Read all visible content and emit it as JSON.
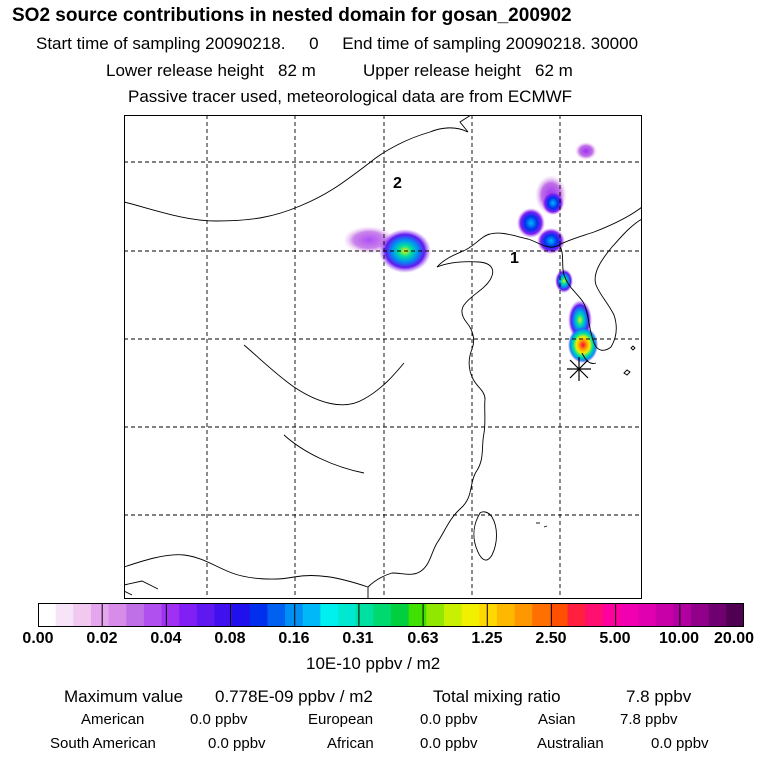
{
  "header": {
    "title": "SO2 source contributions in nested domain for gosan_200902",
    "start_label": "Start time of sampling 20090218.",
    "start_value": "0",
    "end_label": "End time of sampling 20090218. 30000",
    "lower_label": "Lower release height",
    "lower_value": "82 m",
    "upper_label": "Upper release height",
    "upper_value": "62 m",
    "tracer_note": "Passive tracer used, meteorological data are from ECMWF"
  },
  "map": {
    "labels": [
      "2",
      "1"
    ]
  },
  "colorbar": {
    "colors": [
      "#ffffff",
      "#f8e4f8",
      "#f0c8f0",
      "#e6a6ee",
      "#d68ce8",
      "#c070e6",
      "#b050ee",
      "#a030f4",
      "#8020f4",
      "#6018f0",
      "#4010ee",
      "#2010ee",
      "#0030ee",
      "#0060f0",
      "#0090f4",
      "#00b8f8",
      "#00f0f0",
      "#00e8d0",
      "#00e0a0",
      "#00d870",
      "#00d040",
      "#40e000",
      "#90e800",
      "#c8f000",
      "#f0f000",
      "#ffd800",
      "#ffb800",
      "#ff9800",
      "#ff7000",
      "#ff5000",
      "#ff2040",
      "#ff1070",
      "#ff00a0",
      "#f000b0",
      "#e000b0",
      "#c800a8",
      "#b000a0",
      "#900088",
      "#700070",
      "#500050"
    ],
    "ticks": [
      "0.00",
      "0.02",
      "0.04",
      "0.08",
      "0.16",
      "0.31",
      "0.63",
      "1.25",
      "2.50",
      "5.00",
      "10.00",
      "20.00"
    ],
    "unit": "10E-10 ppbv / m2"
  },
  "stats": {
    "max_label": "Maximum value",
    "max_value": "0.778E-09 ppbv / m2",
    "total_label": "Total mixing ratio",
    "total_value": "7.8 ppbv",
    "regions": [
      {
        "name": "American",
        "value": "0.0 ppbv"
      },
      {
        "name": "European",
        "value": "0.0 ppbv"
      },
      {
        "name": "Asian",
        "value": "7.8 ppbv"
      },
      {
        "name": "South American",
        "value": "0.0 ppbv"
      },
      {
        "name": "African",
        "value": "0.0 ppbv"
      },
      {
        "name": "Australian",
        "value": "0.0 ppbv"
      }
    ]
  },
  "palette": {
    "grid": "#000000",
    "coast": "#000000"
  }
}
